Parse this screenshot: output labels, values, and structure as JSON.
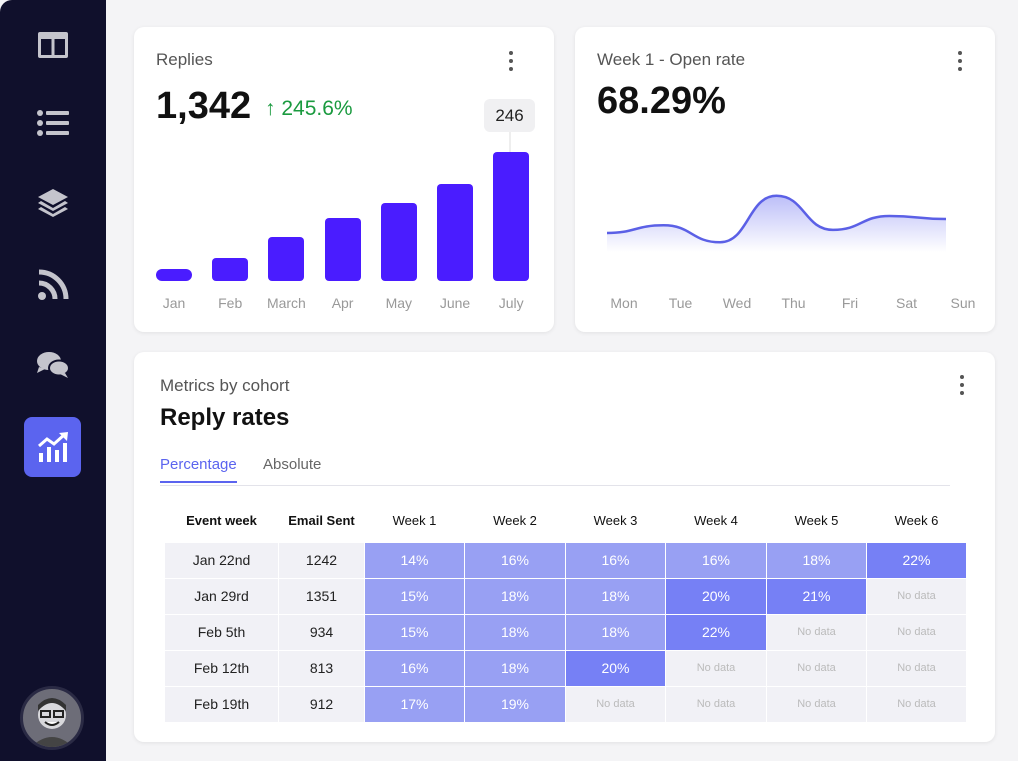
{
  "sidebar": {
    "items": [
      {
        "icon": "layout-icon",
        "active": false
      },
      {
        "icon": "list-icon",
        "active": false
      },
      {
        "icon": "layers-icon",
        "active": false
      },
      {
        "icon": "rss-icon",
        "active": false
      },
      {
        "icon": "chat-icon",
        "active": false
      },
      {
        "icon": "analytics-icon",
        "active": true
      }
    ],
    "avatar": "user-avatar"
  },
  "colors": {
    "bar": "#4a1cff",
    "accent": "#5b64ef",
    "positive": "#1a9a3f",
    "cell_light": "#98a0f3",
    "cell_dark": "#7680f5",
    "sidebar": "#10102c"
  },
  "replies": {
    "title": "Replies",
    "total": "1,342",
    "change": "↑ 245.6%",
    "tooltip": "246"
  },
  "open_rate": {
    "title": "Week 1 - Open rate",
    "value": "68.29%"
  },
  "chart_data": [
    {
      "type": "bar",
      "categories": [
        "Jan",
        "Feb",
        "March",
        "Apr",
        "May",
        "June",
        "July"
      ],
      "values": [
        23,
        44,
        84,
        120,
        149,
        185,
        246
      ],
      "highlight": "July"
    },
    {
      "type": "area",
      "categories": [
        "Mon",
        "Tue",
        "Wed",
        "Thu",
        "Fri",
        "Sat",
        "Sun"
      ],
      "values": [
        45,
        50,
        39,
        69,
        47,
        56,
        54
      ]
    }
  ],
  "cohort": {
    "subtitle": "Metrics by cohort",
    "title": "Reply rates",
    "tabs": [
      {
        "label": "Percentage",
        "selected": true
      },
      {
        "label": "Absolute",
        "selected": false
      }
    ],
    "columns": [
      "Event week",
      "Email Sent",
      "Week 1",
      "Week 2",
      "Week 3",
      "Week 4",
      "Week 5",
      "Week 6"
    ],
    "rows": [
      {
        "week": "Jan 22nd",
        "sent": "1242",
        "cells": [
          "14%",
          "16%",
          "16%",
          "16%",
          "18%",
          "22%"
        ]
      },
      {
        "week": "Jan 29rd",
        "sent": "1351",
        "cells": [
          "15%",
          "18%",
          "18%",
          "20%",
          "21%",
          "No data"
        ]
      },
      {
        "week": "Feb 5th",
        "sent": "934",
        "cells": [
          "15%",
          "18%",
          "18%",
          "22%",
          "No data",
          "No data"
        ]
      },
      {
        "week": "Feb 12th",
        "sent": "813",
        "cells": [
          "16%",
          "18%",
          "20%",
          "No data",
          "No data",
          "No data"
        ]
      },
      {
        "week": "Feb 19th",
        "sent": "912",
        "cells": [
          "17%",
          "19%",
          "No data",
          "No data",
          "No data",
          "No data"
        ]
      }
    ]
  }
}
